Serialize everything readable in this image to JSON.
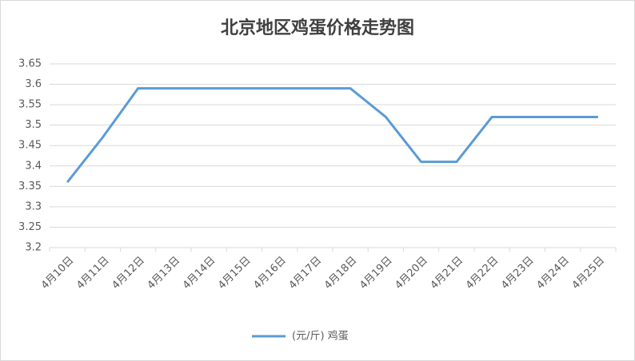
{
  "chart_data": {
    "type": "line",
    "title": "北京地区鸡蛋价格走势图",
    "categories": [
      "4月10日",
      "4月11日",
      "4月12日",
      "4月13日",
      "4月14日",
      "4月15日",
      "4月16日",
      "4月17日",
      "4月18日",
      "4月19日",
      "4月20日",
      "4月21日",
      "4月22日",
      "4月23日",
      "4月24日",
      "4月25日"
    ],
    "series": [
      {
        "name": "(元/斤) 鸡蛋",
        "color": "#5b9bd5",
        "values": [
          3.36,
          3.47,
          3.59,
          3.59,
          3.59,
          3.59,
          3.59,
          3.59,
          3.59,
          3.52,
          3.41,
          3.41,
          3.52,
          3.52,
          3.52,
          3.52
        ]
      }
    ],
    "ylim": [
      3.2,
      3.65
    ],
    "yticks": [
      3.2,
      3.25,
      3.3,
      3.35,
      3.4,
      3.45,
      3.5,
      3.55,
      3.6,
      3.65
    ],
    "grid": true,
    "legend": "bottom"
  }
}
